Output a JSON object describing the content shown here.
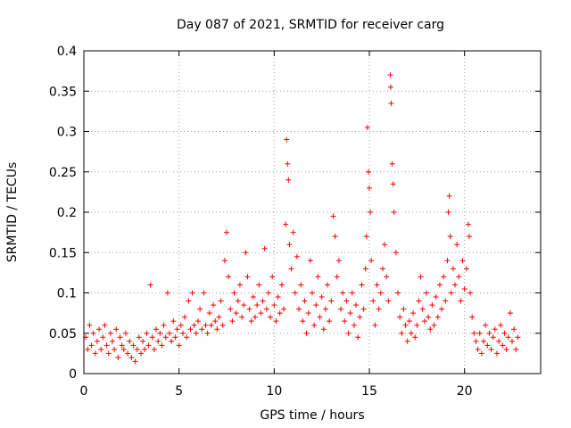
{
  "chart_data": {
    "type": "scatter",
    "title": "Day 087 of 2021, SRMTID for receiver carg",
    "xlabel": "GPS time / hours",
    "ylabel": "SRMTID / TECUs",
    "xlim": [
      0,
      24
    ],
    "ylim": [
      0,
      0.4
    ],
    "xticks": [
      0,
      5,
      10,
      15,
      20
    ],
    "yticks": [
      0,
      0.05,
      0.1,
      0.15,
      0.2,
      0.25,
      0.3,
      0.35,
      0.4
    ],
    "xtick_labels": [
      "0",
      "5",
      "10",
      "15",
      "20"
    ],
    "ytick_labels": [
      "0",
      "0.05",
      "0.1",
      "0.15",
      "0.2",
      "0.25",
      "0.3",
      "0.35",
      "0.4"
    ],
    "grid": true,
    "marker": "+",
    "color": "#ff0000",
    "series": [
      {
        "name": "SRMTID",
        "points": [
          [
            0.1,
            0.045
          ],
          [
            0.2,
            0.03
          ],
          [
            0.3,
            0.06
          ],
          [
            0.4,
            0.035
          ],
          [
            0.5,
            0.05
          ],
          [
            0.6,
            0.025
          ],
          [
            0.7,
            0.04
          ],
          [
            0.8,
            0.055
          ],
          [
            0.9,
            0.03
          ],
          [
            1.0,
            0.045
          ],
          [
            1.1,
            0.06
          ],
          [
            1.2,
            0.035
          ],
          [
            1.3,
            0.025
          ],
          [
            1.4,
            0.05
          ],
          [
            1.5,
            0.04
          ],
          [
            1.6,
            0.03
          ],
          [
            1.7,
            0.055
          ],
          [
            1.8,
            0.02
          ],
          [
            1.9,
            0.045
          ],
          [
            2.0,
            0.035
          ],
          [
            2.1,
            0.03
          ],
          [
            2.2,
            0.05
          ],
          [
            2.3,
            0.025
          ],
          [
            2.4,
            0.04
          ],
          [
            2.5,
            0.02
          ],
          [
            2.6,
            0.035
          ],
          [
            2.7,
            0.015
          ],
          [
            2.8,
            0.03
          ],
          [
            2.9,
            0.045
          ],
          [
            3.0,
            0.025
          ],
          [
            3.1,
            0.04
          ],
          [
            3.2,
            0.03
          ],
          [
            3.3,
            0.05
          ],
          [
            3.4,
            0.035
          ],
          [
            3.5,
            0.11
          ],
          [
            3.6,
            0.045
          ],
          [
            3.7,
            0.03
          ],
          [
            3.8,
            0.055
          ],
          [
            3.9,
            0.04
          ],
          [
            4.0,
            0.05
          ],
          [
            4.1,
            0.035
          ],
          [
            4.2,
            0.06
          ],
          [
            4.3,
            0.045
          ],
          [
            4.4,
            0.1
          ],
          [
            4.5,
            0.05
          ],
          [
            4.6,
            0.04
          ],
          [
            4.7,
            0.065
          ],
          [
            4.8,
            0.045
          ],
          [
            4.9,
            0.055
          ],
          [
            5.0,
            0.035
          ],
          [
            5.1,
            0.06
          ],
          [
            5.2,
            0.05
          ],
          [
            5.3,
            0.07
          ],
          [
            5.4,
            0.045
          ],
          [
            5.5,
            0.09
          ],
          [
            5.6,
            0.055
          ],
          [
            5.7,
            0.1
          ],
          [
            5.8,
            0.06
          ],
          [
            5.9,
            0.05
          ],
          [
            6.0,
            0.065
          ],
          [
            6.1,
            0.08
          ],
          [
            6.2,
            0.055
          ],
          [
            6.3,
            0.1
          ],
          [
            6.4,
            0.06
          ],
          [
            6.5,
            0.05
          ],
          [
            6.6,
            0.075
          ],
          [
            6.7,
            0.06
          ],
          [
            6.8,
            0.085
          ],
          [
            6.9,
            0.065
          ],
          [
            7.0,
            0.055
          ],
          [
            7.1,
            0.07
          ],
          [
            7.2,
            0.09
          ],
          [
            7.3,
            0.06
          ],
          [
            7.4,
            0.14
          ],
          [
            7.5,
            0.175
          ],
          [
            7.6,
            0.12
          ],
          [
            7.7,
            0.08
          ],
          [
            7.8,
            0.065
          ],
          [
            7.9,
            0.1
          ],
          [
            8.0,
            0.075
          ],
          [
            8.1,
            0.09
          ],
          [
            8.2,
            0.11
          ],
          [
            8.3,
            0.07
          ],
          [
            8.4,
            0.085
          ],
          [
            8.5,
            0.15
          ],
          [
            8.6,
            0.12
          ],
          [
            8.7,
            0.08
          ],
          [
            8.8,
            0.065
          ],
          [
            8.9,
            0.095
          ],
          [
            9.0,
            0.07
          ],
          [
            9.1,
            0.085
          ],
          [
            9.2,
            0.11
          ],
          [
            9.3,
            0.075
          ],
          [
            9.4,
            0.09
          ],
          [
            9.5,
            0.155
          ],
          [
            9.6,
            0.08
          ],
          [
            9.7,
            0.1
          ],
          [
            9.8,
            0.07
          ],
          [
            9.9,
            0.12
          ],
          [
            10.0,
            0.085
          ],
          [
            10.1,
            0.065
          ],
          [
            10.2,
            0.095
          ],
          [
            10.3,
            0.075
          ],
          [
            10.4,
            0.11
          ],
          [
            10.5,
            0.08
          ],
          [
            10.6,
            0.185
          ],
          [
            10.65,
            0.29
          ],
          [
            10.7,
            0.26
          ],
          [
            10.75,
            0.24
          ],
          [
            10.8,
            0.16
          ],
          [
            10.9,
            0.13
          ],
          [
            11.0,
            0.175
          ],
          [
            11.1,
            0.1
          ],
          [
            11.2,
            0.145
          ],
          [
            11.3,
            0.08
          ],
          [
            11.4,
            0.11
          ],
          [
            11.5,
            0.065
          ],
          [
            11.6,
            0.09
          ],
          [
            11.7,
            0.05
          ],
          [
            11.8,
            0.075
          ],
          [
            11.9,
            0.14
          ],
          [
            12.0,
            0.1
          ],
          [
            12.1,
            0.06
          ],
          [
            12.2,
            0.085
          ],
          [
            12.3,
            0.12
          ],
          [
            12.4,
            0.07
          ],
          [
            12.5,
            0.095
          ],
          [
            12.6,
            0.055
          ],
          [
            12.7,
            0.08
          ],
          [
            12.8,
            0.11
          ],
          [
            12.9,
            0.065
          ],
          [
            13.0,
            0.09
          ],
          [
            13.1,
            0.195
          ],
          [
            13.2,
            0.17
          ],
          [
            13.3,
            0.12
          ],
          [
            13.4,
            0.14
          ],
          [
            13.5,
            0.08
          ],
          [
            13.6,
            0.1
          ],
          [
            13.7,
            0.065
          ],
          [
            13.8,
            0.09
          ],
          [
            13.9,
            0.05
          ],
          [
            14.0,
            0.075
          ],
          [
            14.1,
            0.1
          ],
          [
            14.2,
            0.06
          ],
          [
            14.3,
            0.085
          ],
          [
            14.4,
            0.045
          ],
          [
            14.5,
            0.07
          ],
          [
            14.6,
            0.11
          ],
          [
            14.7,
            0.08
          ],
          [
            14.8,
            0.13
          ],
          [
            14.85,
            0.17
          ],
          [
            14.9,
            0.305
          ],
          [
            14.95,
            0.25
          ],
          [
            15.0,
            0.23
          ],
          [
            15.05,
            0.2
          ],
          [
            15.1,
            0.14
          ],
          [
            15.2,
            0.09
          ],
          [
            15.3,
            0.06
          ],
          [
            15.4,
            0.11
          ],
          [
            15.5,
            0.08
          ],
          [
            15.6,
            0.1
          ],
          [
            15.7,
            0.13
          ],
          [
            15.8,
            0.16
          ],
          [
            15.9,
            0.12
          ],
          [
            16.0,
            0.09
          ],
          [
            16.1,
            0.37
          ],
          [
            16.12,
            0.355
          ],
          [
            16.15,
            0.335
          ],
          [
            16.2,
            0.26
          ],
          [
            16.25,
            0.235
          ],
          [
            16.3,
            0.2
          ],
          [
            16.4,
            0.15
          ],
          [
            16.5,
            0.1
          ],
          [
            16.6,
            0.07
          ],
          [
            16.7,
            0.05
          ],
          [
            16.8,
            0.08
          ],
          [
            16.9,
            0.06
          ],
          [
            17.0,
            0.04
          ],
          [
            17.1,
            0.065
          ],
          [
            17.2,
            0.05
          ],
          [
            17.3,
            0.075
          ],
          [
            17.4,
            0.045
          ],
          [
            17.5,
            0.06
          ],
          [
            17.6,
            0.09
          ],
          [
            17.7,
            0.12
          ],
          [
            17.8,
            0.08
          ],
          [
            17.9,
            0.065
          ],
          [
            18.0,
            0.1
          ],
          [
            18.1,
            0.07
          ],
          [
            18.2,
            0.055
          ],
          [
            18.3,
            0.085
          ],
          [
            18.4,
            0.06
          ],
          [
            18.5,
            0.095
          ],
          [
            18.6,
            0.07
          ],
          [
            18.7,
            0.11
          ],
          [
            18.8,
            0.08
          ],
          [
            18.9,
            0.12
          ],
          [
            19.0,
            0.09
          ],
          [
            19.1,
            0.14
          ],
          [
            19.15,
            0.2
          ],
          [
            19.2,
            0.22
          ],
          [
            19.25,
            0.17
          ],
          [
            19.3,
            0.1
          ],
          [
            19.4,
            0.13
          ],
          [
            19.5,
            0.11
          ],
          [
            19.6,
            0.16
          ],
          [
            19.7,
            0.12
          ],
          [
            19.8,
            0.09
          ],
          [
            19.9,
            0.14
          ],
          [
            20.0,
            0.105
          ],
          [
            20.1,
            0.13
          ],
          [
            20.2,
            0.185
          ],
          [
            20.25,
            0.17
          ],
          [
            20.3,
            0.1
          ],
          [
            20.4,
            0.07
          ],
          [
            20.5,
            0.05
          ],
          [
            20.6,
            0.04
          ],
          [
            20.7,
            0.03
          ],
          [
            20.8,
            0.05
          ],
          [
            20.9,
            0.025
          ],
          [
            21.0,
            0.04
          ],
          [
            21.1,
            0.06
          ],
          [
            21.2,
            0.035
          ],
          [
            21.3,
            0.05
          ],
          [
            21.4,
            0.03
          ],
          [
            21.5,
            0.045
          ],
          [
            21.6,
            0.055
          ],
          [
            21.7,
            0.025
          ],
          [
            21.8,
            0.04
          ],
          [
            21.9,
            0.06
          ],
          [
            22.0,
            0.035
          ],
          [
            22.1,
            0.05
          ],
          [
            22.2,
            0.03
          ],
          [
            22.3,
            0.045
          ],
          [
            22.4,
            0.075
          ],
          [
            22.5,
            0.04
          ],
          [
            22.6,
            0.055
          ],
          [
            22.7,
            0.03
          ],
          [
            22.8,
            0.045
          ]
        ]
      }
    ]
  }
}
